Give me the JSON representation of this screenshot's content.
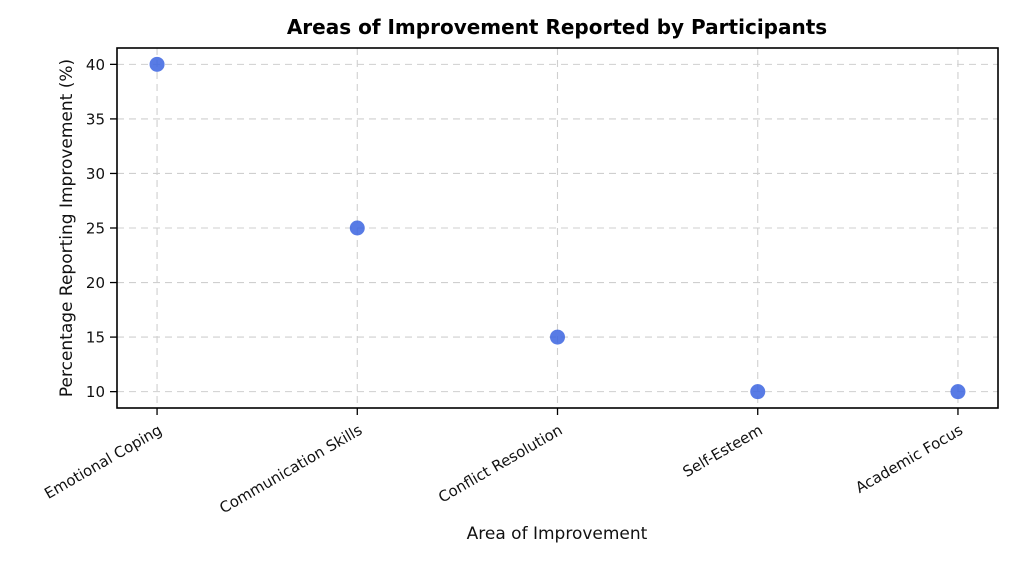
{
  "chart_data": {
    "type": "scatter",
    "title": "Areas of Improvement Reported by Participants",
    "xlabel": "Area of Improvement",
    "ylabel": "Percentage Reporting Improvement (%)",
    "categories": [
      "Emotional Coping",
      "Communication Skills",
      "Conflict Resolution",
      "Self-Esteem",
      "Academic Focus"
    ],
    "values": [
      40,
      25,
      15,
      10,
      10
    ],
    "yticks": [
      10,
      15,
      20,
      25,
      30,
      35,
      40
    ],
    "ylim": [
      8.5,
      41.5
    ],
    "xlim": [
      -0.2,
      4.2
    ],
    "grid": true,
    "grid_linestyle": "dashed",
    "grid_color": "#cfcfcf",
    "marker_color": "#4169E1",
    "marker_opacity": 0.88,
    "x_tick_rotation_deg": 30,
    "legend": "none"
  }
}
